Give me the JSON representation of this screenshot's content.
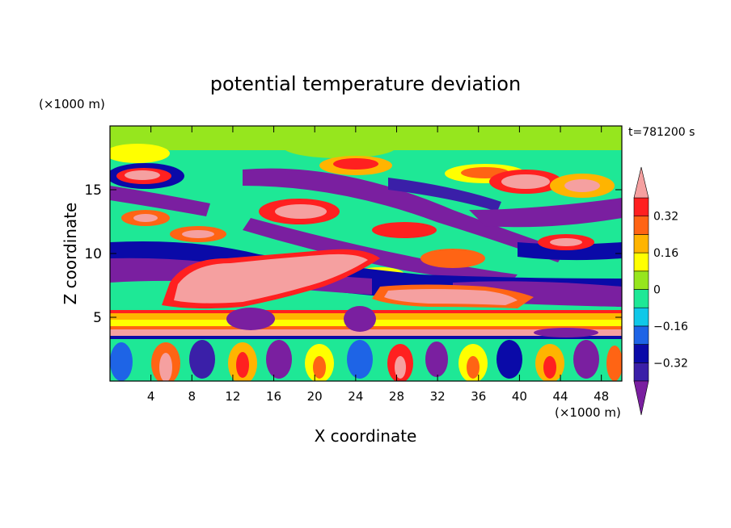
{
  "chart_data": {
    "type": "heatmap",
    "title": "potential temperature deviation",
    "xlabel": "X coordinate",
    "ylabel": "Z coordinate",
    "x_unit": "(×1000 m)",
    "z_unit": "(×1000 m)",
    "time_label": "t=781200 s",
    "x_range": [
      0,
      50
    ],
    "z_range": [
      0,
      20
    ],
    "x_ticks": [
      4,
      8,
      12,
      16,
      20,
      24,
      28,
      32,
      36,
      40,
      44,
      48
    ],
    "z_ticks": [
      5,
      10,
      15
    ],
    "colorbar": {
      "levels": [
        -0.4,
        -0.32,
        -0.24,
        -0.16,
        -0.08,
        0,
        0.08,
        0.16,
        0.24,
        0.32,
        0.4
      ],
      "labels": [
        "0.32",
        "0.16",
        "0",
        "−0.16",
        "−0.32"
      ],
      "colors": [
        "#7a1fa0",
        "#3a1fa8",
        "#0a0aa8",
        "#1e64e6",
        "#10c8e8",
        "#1ee896",
        "#96e61e",
        "#ffff00",
        "#ffb400",
        "#ff6414",
        "#ff2020",
        "#f5a0a0"
      ]
    }
  }
}
